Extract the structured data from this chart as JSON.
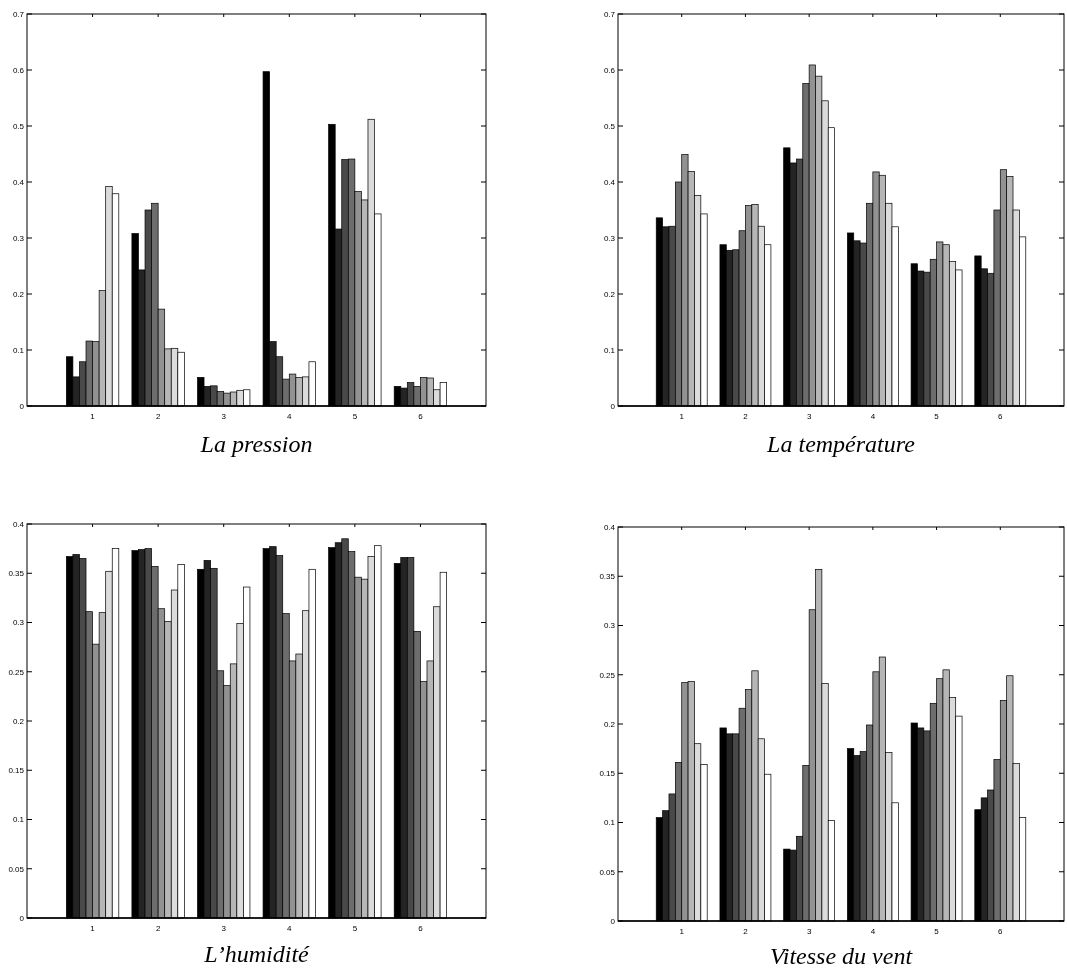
{
  "chart_data": [
    {
      "type": "bar",
      "title": "La pression",
      "categories": [
        "1",
        "2",
        "3",
        "4",
        "5",
        "6"
      ],
      "ylim": [
        0,
        0.7
      ],
      "yticks": [
        0,
        0.1,
        0.2,
        0.3,
        0.4,
        0.5,
        0.6,
        0.7
      ],
      "series": [
        {
          "color": "#000000",
          "values": [
            0.088,
            0.308,
            0.051,
            0.597,
            0.503,
            0.035
          ]
        },
        {
          "color": "#242424",
          "values": [
            0.052,
            0.243,
            0.035,
            0.115,
            0.316,
            0.032
          ]
        },
        {
          "color": "#494949",
          "values": [
            0.079,
            0.35,
            0.036,
            0.088,
            0.44,
            0.042
          ]
        },
        {
          "color": "#6d6d6d",
          "values": [
            0.116,
            0.362,
            0.026,
            0.048,
            0.441,
            0.035
          ]
        },
        {
          "color": "#929292",
          "values": [
            0.115,
            0.173,
            0.023,
            0.057,
            0.383,
            0.051
          ]
        },
        {
          "color": "#b6b6b6",
          "values": [
            0.206,
            0.102,
            0.025,
            0.051,
            0.368,
            0.05
          ]
        },
        {
          "color": "#dbdbdb",
          "values": [
            0.392,
            0.103,
            0.028,
            0.052,
            0.512,
            0.029
          ]
        },
        {
          "color": "#ffffff",
          "values": [
            0.379,
            0.096,
            0.029,
            0.079,
            0.343,
            0.042
          ]
        }
      ]
    },
    {
      "type": "bar",
      "title": "La température",
      "categories": [
        "1",
        "2",
        "3",
        "4",
        "5",
        "6"
      ],
      "ylim": [
        0,
        0.7
      ],
      "yticks": [
        0,
        0.1,
        0.2,
        0.3,
        0.4,
        0.5,
        0.6,
        0.7
      ],
      "series": [
        {
          "color": "#000000",
          "values": [
            0.336,
            0.288,
            0.461,
            0.309,
            0.254,
            0.268
          ]
        },
        {
          "color": "#242424",
          "values": [
            0.32,
            0.278,
            0.434,
            0.295,
            0.241,
            0.245
          ]
        },
        {
          "color": "#494949",
          "values": [
            0.321,
            0.279,
            0.441,
            0.291,
            0.239,
            0.237
          ]
        },
        {
          "color": "#6d6d6d",
          "values": [
            0.4,
            0.313,
            0.576,
            0.362,
            0.262,
            0.35
          ]
        },
        {
          "color": "#929292",
          "values": [
            0.449,
            0.358,
            0.609,
            0.418,
            0.293,
            0.422
          ]
        },
        {
          "color": "#b6b6b6",
          "values": [
            0.419,
            0.36,
            0.589,
            0.412,
            0.288,
            0.41
          ]
        },
        {
          "color": "#dbdbdb",
          "values": [
            0.376,
            0.321,
            0.545,
            0.362,
            0.258,
            0.35
          ]
        },
        {
          "color": "#ffffff",
          "values": [
            0.343,
            0.288,
            0.497,
            0.32,
            0.243,
            0.302
          ]
        }
      ]
    },
    {
      "type": "bar",
      "title": "L’humidité",
      "categories": [
        "1",
        "2",
        "3",
        "4",
        "5",
        "6"
      ],
      "ylim": [
        0,
        0.4
      ],
      "yticks": [
        0,
        0.05,
        0.1,
        0.15,
        0.2,
        0.25,
        0.3,
        0.35,
        0.4
      ],
      "series": [
        {
          "color": "#000000",
          "values": [
            0.367,
            0.373,
            0.354,
            0.375,
            0.376,
            0.36
          ]
        },
        {
          "color": "#242424",
          "values": [
            0.369,
            0.374,
            0.363,
            0.377,
            0.381,
            0.366
          ]
        },
        {
          "color": "#494949",
          "values": [
            0.365,
            0.375,
            0.355,
            0.368,
            0.385,
            0.366
          ]
        },
        {
          "color": "#6d6d6d",
          "values": [
            0.311,
            0.357,
            0.251,
            0.309,
            0.372,
            0.291
          ]
        },
        {
          "color": "#929292",
          "values": [
            0.278,
            0.314,
            0.236,
            0.261,
            0.346,
            0.24
          ]
        },
        {
          "color": "#b6b6b6",
          "values": [
            0.31,
            0.301,
            0.258,
            0.268,
            0.344,
            0.261
          ]
        },
        {
          "color": "#dbdbdb",
          "values": [
            0.352,
            0.333,
            0.299,
            0.312,
            0.367,
            0.316
          ]
        },
        {
          "color": "#ffffff",
          "values": [
            0.375,
            0.359,
            0.336,
            0.354,
            0.378,
            0.351
          ]
        }
      ]
    },
    {
      "type": "bar",
      "title": "Vitesse du vent",
      "categories": [
        "1",
        "2",
        "3",
        "4",
        "5",
        "6"
      ],
      "ylim": [
        0,
        0.4
      ],
      "yticks": [
        0,
        0.05,
        0.1,
        0.15,
        0.2,
        0.25,
        0.3,
        0.35,
        0.4
      ],
      "series": [
        {
          "color": "#000000",
          "values": [
            0.105,
            0.196,
            0.073,
            0.175,
            0.201,
            0.113
          ]
        },
        {
          "color": "#242424",
          "values": [
            0.112,
            0.19,
            0.072,
            0.168,
            0.196,
            0.125
          ]
        },
        {
          "color": "#494949",
          "values": [
            0.129,
            0.19,
            0.086,
            0.172,
            0.193,
            0.133
          ]
        },
        {
          "color": "#6d6d6d",
          "values": [
            0.161,
            0.216,
            0.158,
            0.199,
            0.221,
            0.164
          ]
        },
        {
          "color": "#929292",
          "values": [
            0.242,
            0.235,
            0.316,
            0.253,
            0.246,
            0.224
          ]
        },
        {
          "color": "#b6b6b6",
          "values": [
            0.243,
            0.254,
            0.357,
            0.268,
            0.255,
            0.249
          ]
        },
        {
          "color": "#dbdbdb",
          "values": [
            0.18,
            0.185,
            0.241,
            0.171,
            0.227,
            0.16
          ]
        },
        {
          "color": "#ffffff",
          "values": [
            0.159,
            0.149,
            0.102,
            0.12,
            0.208,
            0.105
          ]
        }
      ]
    }
  ]
}
